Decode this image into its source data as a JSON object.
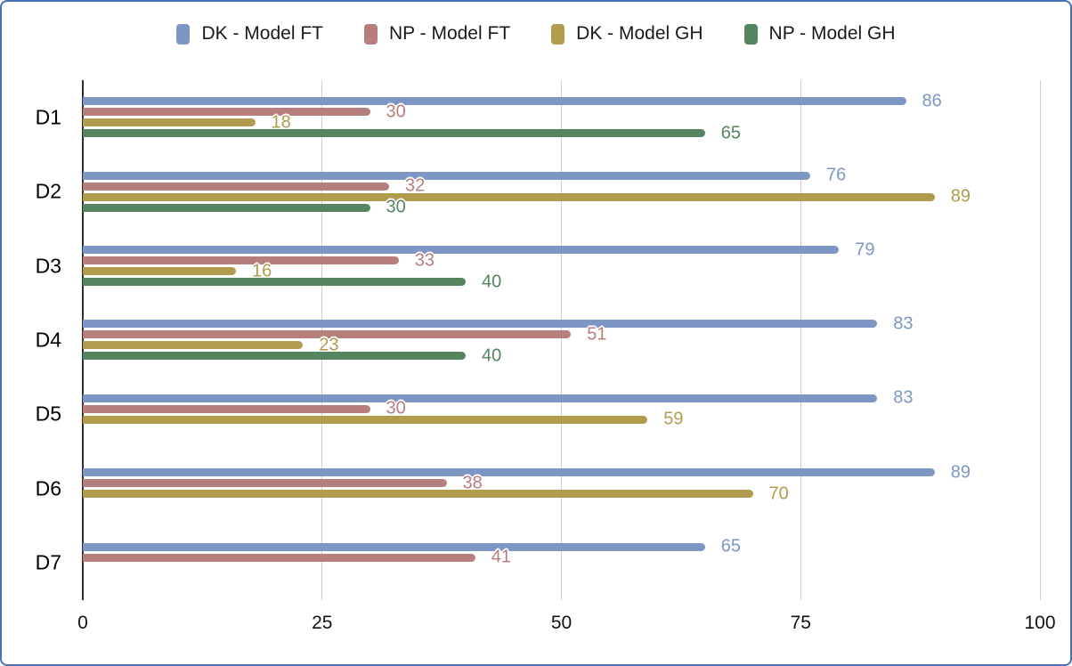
{
  "colors": {
    "frame_border": "#4472b8",
    "grid": "#cccccc",
    "axis": "#2e2e2e",
    "legend_text": "#1a1a1a",
    "tick_text": "#111111",
    "category_text": "#000000"
  },
  "chart_data": {
    "type": "bar",
    "orientation": "horizontal",
    "title": "",
    "xlabel": "",
    "ylabel": "",
    "grid": true,
    "legend_position": "top",
    "xlim": [
      0,
      100
    ],
    "x_ticks": [
      0,
      25,
      50,
      75,
      100
    ],
    "x_tick_labels": [
      "0",
      "25",
      "50",
      "75",
      "100"
    ],
    "categories": [
      "D1",
      "D2",
      "D3",
      "D4",
      "D5",
      "D6",
      "D7"
    ],
    "series": [
      {
        "name": "DK - Model FT",
        "color": "#7e96c3",
        "values": [
          86,
          76,
          79,
          83,
          83,
          89,
          65
        ]
      },
      {
        "name": "NP - Model FT",
        "color": "#b77e7e",
        "values": [
          30,
          32,
          33,
          51,
          30,
          38,
          41
        ]
      },
      {
        "name": "DK - Model GH",
        "color": "#b19b4d",
        "values": [
          18,
          89,
          16,
          23,
          59,
          70,
          null
        ]
      },
      {
        "name": "NP - Model GH",
        "color": "#548560",
        "values": [
          65,
          30,
          40,
          40,
          null,
          null,
          null
        ]
      }
    ],
    "data_labels_shown": true
  }
}
